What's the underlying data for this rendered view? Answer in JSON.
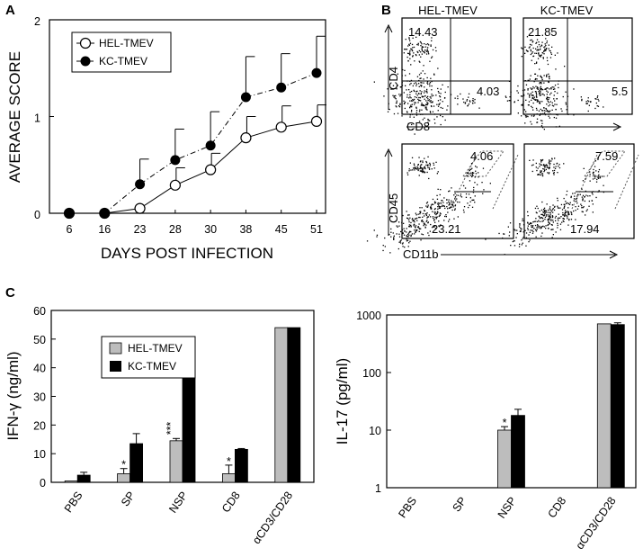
{
  "panel_labels": {
    "a": "A",
    "b": "B",
    "c": "C"
  },
  "colors": {
    "hel_bar": "#bdbdbd",
    "kc_bar": "#000000",
    "plot_bg": "#ffffff",
    "axis": "#000000"
  },
  "chart_data": [
    {
      "id": "A",
      "type": "line",
      "xlabel": "DAYS POST INFECTION",
      "ylabel": "AVERAGE SCORE",
      "categories": [
        "6",
        "16",
        "23",
        "28",
        "30",
        "38",
        "45",
        "51"
      ],
      "ylim": [
        0,
        2
      ],
      "yticks": [
        "0",
        "1",
        "2"
      ],
      "series": [
        {
          "name": "HEL-TMEV",
          "marker": "open-circle",
          "values": [
            0,
            0,
            0.05,
            0.29,
            0.45,
            0.78,
            0.89,
            0.95
          ],
          "errors": [
            0,
            0,
            0.0,
            0.18,
            0.17,
            0.22,
            0.22,
            0.17
          ]
        },
        {
          "name": "KC-TMEV",
          "marker": "filled-circle",
          "values": [
            0,
            0,
            0.3,
            0.55,
            0.7,
            1.2,
            1.3,
            1.45
          ],
          "errors": [
            0,
            0,
            0.26,
            0.32,
            0.35,
            0.42,
            0.35,
            0.38
          ]
        }
      ]
    },
    {
      "id": "B",
      "type": "scatter",
      "column_titles": [
        "HEL-TMEV",
        "KC-TMEV"
      ],
      "rows": [
        {
          "xlabel": "CD8",
          "ylabel": "CD4",
          "plots": [
            {
              "values": [
                "14.43",
                "4.03"
              ]
            },
            {
              "values": [
                "21.85",
                "5.5"
              ]
            }
          ]
        },
        {
          "xlabel": "CD11b",
          "ylabel": "CD45",
          "plots": [
            {
              "values": [
                "4.06",
                "23.21"
              ]
            },
            {
              "values": [
                "7.59",
                "17.94"
              ]
            }
          ]
        }
      ]
    },
    {
      "id": "C-left",
      "type": "bar",
      "ylabel": "IFN-γ (ng/ml)",
      "categories": [
        "PBS",
        "SP",
        "NSP",
        "CD8",
        "αCD3/CD28"
      ],
      "ylim": [
        0,
        60
      ],
      "yticks": [
        "0",
        "10",
        "20",
        "30",
        "40",
        "50",
        "60"
      ],
      "significance": [
        "",
        "*",
        "***",
        "*",
        ""
      ],
      "series": [
        {
          "name": "HEL-TMEV",
          "values": [
            0.5,
            3,
            14.5,
            3,
            54
          ],
          "errors": [
            0,
            1.8,
            0.8,
            3,
            0
          ]
        },
        {
          "name": "KC-TMEV",
          "values": [
            2.5,
            13.5,
            38,
            11.5,
            54
          ],
          "errors": [
            1,
            3.5,
            3.5,
            0.3,
            0
          ]
        }
      ]
    },
    {
      "id": "C-right",
      "type": "bar",
      "ylabel": "IL-17 (pg/ml)",
      "yscale": "log",
      "categories": [
        "PBS",
        "SP",
        "NSP",
        "CD8",
        "αCD3/CD28"
      ],
      "ylim": [
        1,
        1000
      ],
      "yticks": [
        "1",
        "10",
        "100",
        "1000"
      ],
      "significance": [
        "",
        "",
        "*",
        "",
        ""
      ],
      "series": [
        {
          "name": "HEL-TMEV",
          "values": [
            1,
            1,
            10,
            1,
            700
          ],
          "errors": [
            0,
            0,
            1.5,
            0,
            0
          ]
        },
        {
          "name": "KC-TMEV",
          "values": [
            1,
            1,
            18,
            1,
            680
          ],
          "errors": [
            0,
            0,
            5,
            0,
            50
          ]
        }
      ]
    }
  ]
}
